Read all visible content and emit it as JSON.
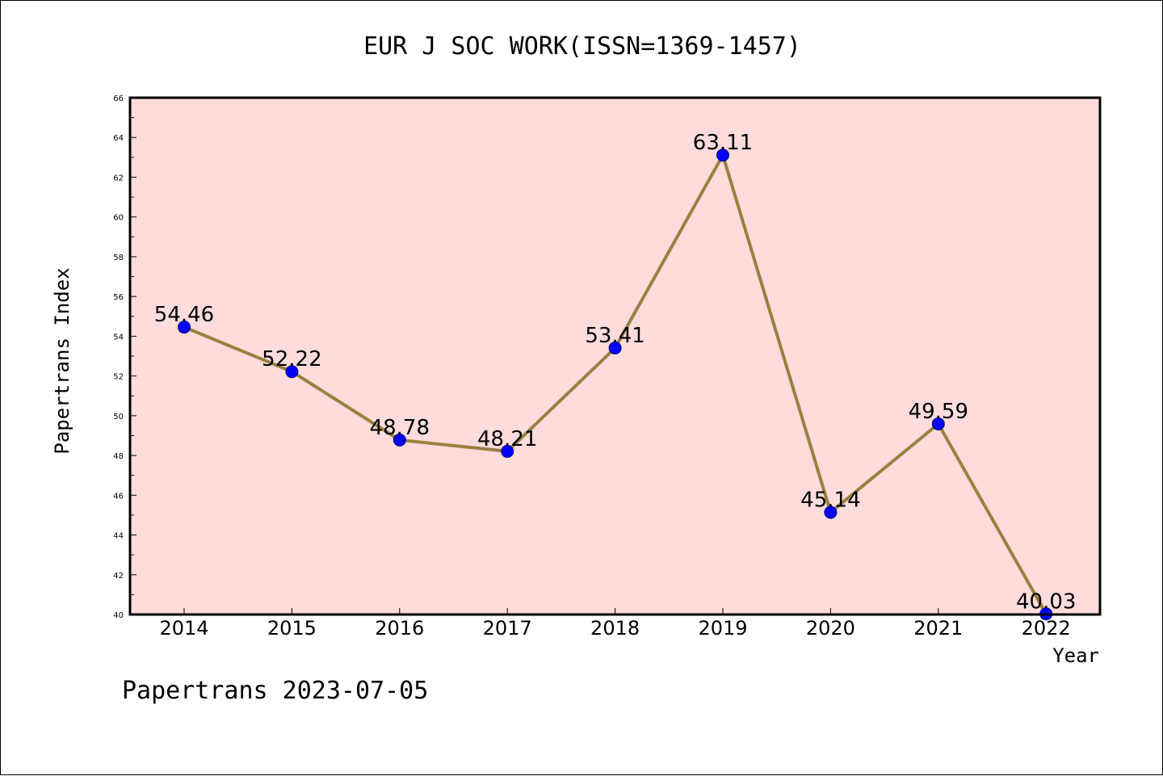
{
  "chart_data": {
    "type": "line",
    "title": "EUR J SOC WORK(ISSN=1369-1457)",
    "xlabel": "Year",
    "ylabel": "Papertrans Index",
    "categories": [
      "2014",
      "2015",
      "2016",
      "2017",
      "2018",
      "2019",
      "2020",
      "2021",
      "2022"
    ],
    "series": [
      {
        "values": [
          54.46,
          52.22,
          48.78,
          48.21,
          53.41,
          63.11,
          45.14,
          49.59,
          40.03
        ],
        "labels": [
          "54.46",
          "52.22",
          "48.78",
          "48.21",
          "53.41",
          "63.11",
          "45.14",
          "49.59",
          "40.03"
        ]
      }
    ],
    "ylim": [
      40,
      66
    ],
    "yticks": [
      40,
      42,
      44,
      46,
      48,
      50,
      52,
      54,
      56,
      58,
      60,
      62,
      64,
      66
    ],
    "ytick_labels": [
      "40",
      "42",
      "44",
      "46",
      "48",
      "50",
      "52",
      "54",
      "56",
      "58",
      "60",
      "62",
      "64",
      "66"
    ],
    "grid": false,
    "colors": {
      "plot_background": "#ffdcdc",
      "line": "#9a8040",
      "marker_fill": "#0000ff",
      "marker_edge": "#000080",
      "frame": "#000000"
    }
  },
  "footer": "Papertrans 2023-07-05"
}
